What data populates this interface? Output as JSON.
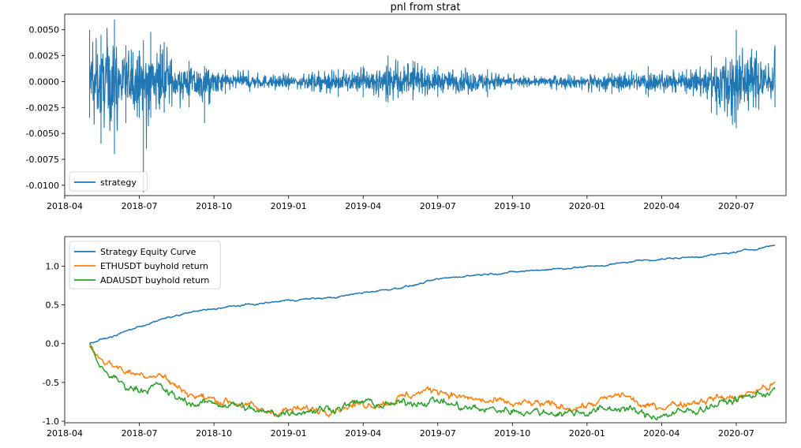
{
  "chart_data": [
    {
      "type": "line",
      "title": "pnl from strat",
      "xlabel": "",
      "ylabel": "",
      "xlim": [
        "2018-04",
        "2020-09"
      ],
      "ylim": [
        -0.011,
        0.0065
      ],
      "x_ticks": [
        "2018-04",
        "2018-07",
        "2018-10",
        "2019-01",
        "2019-04",
        "2019-07",
        "2019-10",
        "2020-01",
        "2020-04",
        "2020-07"
      ],
      "y_ticks": [
        "0.0050",
        "0.0025",
        "0.0000",
        "-0.0025",
        "-0.0050",
        "-0.0075",
        "-0.0100"
      ],
      "legend_position": "lower-left",
      "grid": false,
      "series": [
        {
          "name": "strategy",
          "color": "#1f77b4",
          "x_start": "2018-05-01",
          "x_end": "2020-08-18",
          "amplitude_envelope": [
            {
              "date": "2018-05-01",
              "up": 0.005,
              "down": -0.0035
            },
            {
              "date": "2018-05-15",
              "up": 0.0045,
              "down": -0.006
            },
            {
              "date": "2018-06-01",
              "up": 0.006,
              "down": -0.007
            },
            {
              "date": "2018-06-15",
              "up": 0.0035,
              "down": -0.004
            },
            {
              "date": "2018-07-01",
              "up": 0.003,
              "down": -0.0035
            },
            {
              "date": "2018-07-06",
              "up": 0.004,
              "down": -0.0107
            },
            {
              "date": "2018-07-15",
              "up": 0.0048,
              "down": -0.0035
            },
            {
              "date": "2018-08-01",
              "up": 0.0038,
              "down": -0.003
            },
            {
              "date": "2018-09-01",
              "up": 0.002,
              "down": -0.0025
            },
            {
              "date": "2018-09-20",
              "up": 0.0015,
              "down": -0.004
            },
            {
              "date": "2018-10-15",
              "up": 0.0012,
              "down": -0.0012
            },
            {
              "date": "2019-01-01",
              "up": 0.0008,
              "down": -0.0008
            },
            {
              "date": "2019-03-01",
              "up": 0.0012,
              "down": -0.0015
            },
            {
              "date": "2019-04-01",
              "up": 0.0015,
              "down": -0.0015
            },
            {
              "date": "2019-05-01",
              "up": 0.0025,
              "down": -0.002
            },
            {
              "date": "2019-06-01",
              "up": 0.002,
              "down": -0.0018
            },
            {
              "date": "2019-07-01",
              "up": 0.0015,
              "down": -0.0015
            },
            {
              "date": "2019-09-01",
              "up": 0.0012,
              "down": -0.0015
            },
            {
              "date": "2019-10-15",
              "up": 0.0006,
              "down": -0.0006
            },
            {
              "date": "2020-02-01",
              "up": 0.0008,
              "down": -0.0012
            },
            {
              "date": "2020-03-15",
              "up": 0.0015,
              "down": -0.0015
            },
            {
              "date": "2020-05-01",
              "up": 0.0012,
              "down": -0.0012
            },
            {
              "date": "2020-06-01",
              "up": 0.0025,
              "down": -0.003
            },
            {
              "date": "2020-07-01",
              "up": 0.005,
              "down": -0.0045
            },
            {
              "date": "2020-08-18",
              "up": 0.0035,
              "down": -0.0025
            }
          ]
        }
      ]
    },
    {
      "type": "line",
      "title": "",
      "xlabel": "",
      "ylabel": "",
      "xlim": [
        "2018-04",
        "2020-09"
      ],
      "ylim": [
        -1.02,
        1.38
      ],
      "x_ticks": [
        "2018-04",
        "2018-07",
        "2018-10",
        "2019-01",
        "2019-04",
        "2019-07",
        "2019-10",
        "2020-01",
        "2020-04",
        "2020-07"
      ],
      "y_ticks": [
        "1.0",
        "0.5",
        "0.0",
        "-0.5",
        "-1.0"
      ],
      "legend_position": "upper-left",
      "grid": false,
      "series": [
        {
          "name": "Strategy Equity Curve",
          "color": "#1f77b4",
          "points": [
            [
              "2018-05-01",
              0.0
            ],
            [
              "2018-05-15",
              0.05
            ],
            [
              "2018-06-01",
              0.1
            ],
            [
              "2018-06-15",
              0.16
            ],
            [
              "2018-07-01",
              0.22
            ],
            [
              "2018-08-01",
              0.32
            ],
            [
              "2018-09-01",
              0.4
            ],
            [
              "2018-10-01",
              0.45
            ],
            [
              "2018-11-01",
              0.49
            ],
            [
              "2018-12-01",
              0.52
            ],
            [
              "2019-01-01",
              0.56
            ],
            [
              "2019-02-01",
              0.58
            ],
            [
              "2019-03-01",
              0.6
            ],
            [
              "2019-04-01",
              0.66
            ],
            [
              "2019-05-01",
              0.7
            ],
            [
              "2019-06-01",
              0.75
            ],
            [
              "2019-07-01",
              0.83
            ],
            [
              "2019-08-01",
              0.87
            ],
            [
              "2019-09-01",
              0.9
            ],
            [
              "2019-10-01",
              0.92
            ],
            [
              "2019-11-01",
              0.95
            ],
            [
              "2019-12-01",
              0.97
            ],
            [
              "2020-01-01",
              0.99
            ],
            [
              "2020-02-01",
              1.02
            ],
            [
              "2020-03-01",
              1.07
            ],
            [
              "2020-04-01",
              1.09
            ],
            [
              "2020-05-01",
              1.11
            ],
            [
              "2020-06-01",
              1.14
            ],
            [
              "2020-07-01",
              1.18
            ],
            [
              "2020-08-18",
              1.27
            ]
          ]
        },
        {
          "name": "ETHUSDT buyhold return",
          "color": "#ff7f0e",
          "points": [
            [
              "2018-05-01",
              0.0
            ],
            [
              "2018-05-10",
              -0.15
            ],
            [
              "2018-05-25",
              -0.25
            ],
            [
              "2018-06-15",
              -0.35
            ],
            [
              "2018-07-01",
              -0.4
            ],
            [
              "2018-07-25",
              -0.38
            ],
            [
              "2018-08-15",
              -0.55
            ],
            [
              "2018-09-10",
              -0.68
            ],
            [
              "2018-10-01",
              -0.72
            ],
            [
              "2018-11-01",
              -0.76
            ],
            [
              "2018-12-01",
              -0.88
            ],
            [
              "2019-01-01",
              -0.86
            ],
            [
              "2019-02-01",
              -0.85
            ],
            [
              "2019-03-01",
              -0.82
            ],
            [
              "2019-04-01",
              -0.78
            ],
            [
              "2019-05-01",
              -0.75
            ],
            [
              "2019-06-01",
              -0.65
            ],
            [
              "2019-07-01",
              -0.58
            ],
            [
              "2019-08-01",
              -0.7
            ],
            [
              "2019-09-01",
              -0.75
            ],
            [
              "2019-10-01",
              -0.78
            ],
            [
              "2019-11-01",
              -0.78
            ],
            [
              "2019-12-01",
              -0.82
            ],
            [
              "2020-01-01",
              -0.8
            ],
            [
              "2020-02-15",
              -0.65
            ],
            [
              "2020-03-12",
              -0.83
            ],
            [
              "2020-04-01",
              -0.8
            ],
            [
              "2020-05-01",
              -0.76
            ],
            [
              "2020-06-01",
              -0.7
            ],
            [
              "2020-07-01",
              -0.7
            ],
            [
              "2020-08-18",
              -0.52
            ]
          ]
        },
        {
          "name": "ADAUSDT buyhold return",
          "color": "#2ca02c",
          "points": [
            [
              "2018-05-01",
              0.0
            ],
            [
              "2018-05-10",
              -0.25
            ],
            [
              "2018-05-25",
              -0.4
            ],
            [
              "2018-06-15",
              -0.55
            ],
            [
              "2018-07-01",
              -0.58
            ],
            [
              "2018-07-25",
              -0.55
            ],
            [
              "2018-08-15",
              -0.7
            ],
            [
              "2018-09-10",
              -0.78
            ],
            [
              "2018-10-01",
              -0.76
            ],
            [
              "2018-11-01",
              -0.8
            ],
            [
              "2018-12-01",
              -0.9
            ],
            [
              "2019-01-01",
              -0.88
            ],
            [
              "2019-02-01",
              -0.85
            ],
            [
              "2019-03-01",
              -0.82
            ],
            [
              "2019-04-01",
              -0.75
            ],
            [
              "2019-05-01",
              -0.8
            ],
            [
              "2019-06-01",
              -0.75
            ],
            [
              "2019-07-01",
              -0.73
            ],
            [
              "2019-08-01",
              -0.83
            ],
            [
              "2019-09-01",
              -0.85
            ],
            [
              "2019-10-01",
              -0.86
            ],
            [
              "2019-11-01",
              -0.88
            ],
            [
              "2019-12-01",
              -0.89
            ],
            [
              "2020-01-01",
              -0.88
            ],
            [
              "2020-02-15",
              -0.82
            ],
            [
              "2020-03-12",
              -0.93
            ],
            [
              "2020-04-01",
              -0.92
            ],
            [
              "2020-05-01",
              -0.88
            ],
            [
              "2020-06-01",
              -0.8
            ],
            [
              "2020-07-01",
              -0.72
            ],
            [
              "2020-08-18",
              -0.6
            ]
          ]
        }
      ]
    }
  ]
}
